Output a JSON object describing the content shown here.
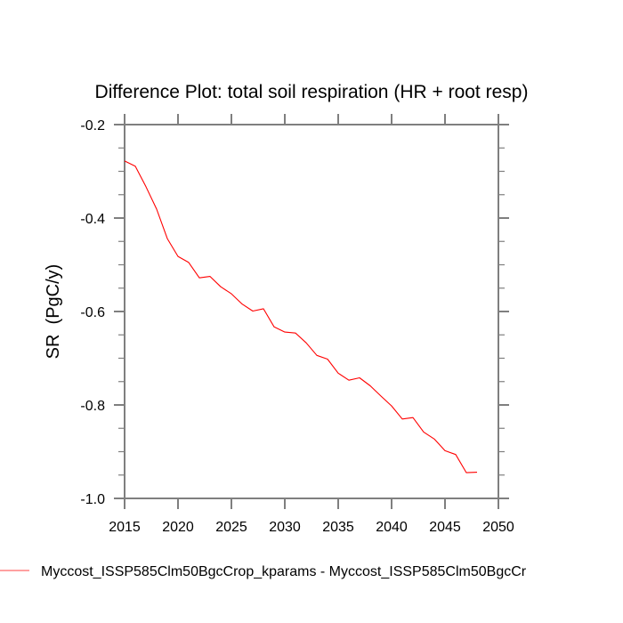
{
  "chart_data": {
    "type": "line",
    "title": "Difference Plot: total soil respiration (HR + root resp)",
    "xlabel": "",
    "ylabel": "SR  (PgC/y)",
    "xlim": [
      2015,
      2050
    ],
    "ylim": [
      -1.0,
      -0.2
    ],
    "x_ticks": [
      2015,
      2020,
      2025,
      2030,
      2035,
      2040,
      2045,
      2050
    ],
    "x_tick_labels": [
      "2015",
      "2020",
      "2025",
      "2030",
      "2035",
      "2040",
      "2045",
      "2050"
    ],
    "y_ticks": [
      -0.2,
      -0.4,
      -0.6,
      -0.8,
      -1.0
    ],
    "y_tick_labels": [
      "-0.2",
      "-0.4",
      "-0.6",
      "-0.8",
      "-1.0"
    ],
    "y_minor_step": 0.05,
    "x_minor_step": 5,
    "grid": false,
    "legend_position": "bottom",
    "series": [
      {
        "name": "Myccost_ISSP585Clm50BgcCrop_kparams - Myccost_ISSP585Clm50BgcCr",
        "color": "#ff0000",
        "x": [
          2015,
          2016,
          2017,
          2018,
          2019,
          2020,
          2021,
          2022,
          2023,
          2024,
          2025,
          2026,
          2027,
          2028,
          2029,
          2030,
          2031,
          2032,
          2033,
          2034,
          2035,
          2036,
          2037,
          2038,
          2039,
          2040,
          2041,
          2042,
          2043,
          2044,
          2045,
          2046,
          2047,
          2048
        ],
        "values": [
          -0.278,
          -0.289,
          -0.333,
          -0.381,
          -0.444,
          -0.482,
          -0.495,
          -0.528,
          -0.525,
          -0.547,
          -0.562,
          -0.584,
          -0.599,
          -0.594,
          -0.633,
          -0.644,
          -0.646,
          -0.667,
          -0.694,
          -0.702,
          -0.732,
          -0.747,
          -0.742,
          -0.759,
          -0.781,
          -0.802,
          -0.83,
          -0.827,
          -0.858,
          -0.873,
          -0.898,
          -0.906,
          -0.945,
          -0.944
        ]
      }
    ]
  }
}
